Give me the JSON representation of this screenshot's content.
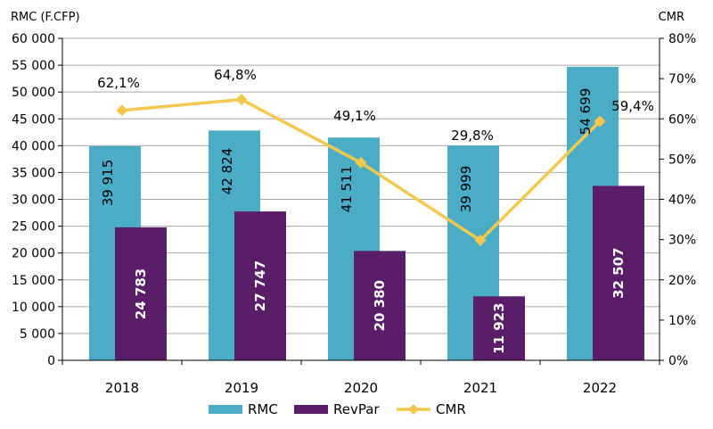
{
  "chart_data": {
    "type": "bar+line",
    "categories": [
      "2018",
      "2019",
      "2020",
      "2021",
      "2022"
    ],
    "y_left": {
      "label": "RMC (F.CFP)",
      "min": 0,
      "max": 60000,
      "step": 5000,
      "ticks": [
        "0",
        "5 000",
        "10 000",
        "15 000",
        "20 000",
        "25 000",
        "30 000",
        "35 000",
        "40 000",
        "45 000",
        "50 000",
        "55 000",
        "60 000"
      ]
    },
    "y_right": {
      "label": "CMR",
      "min": 0,
      "max": 80,
      "step": 10,
      "ticks": [
        "0%",
        "10%",
        "20%",
        "30%",
        "40%",
        "50%",
        "60%",
        "70%",
        "80%"
      ]
    },
    "series": [
      {
        "name": "RMC",
        "type": "bar",
        "axis": "left",
        "color": "#4BACC6",
        "values": [
          39915,
          42824,
          41511,
          39999,
          54699
        ],
        "labels": [
          "39 915",
          "42 824",
          "41 511",
          "39 999",
          "54 699"
        ]
      },
      {
        "name": "RevPar",
        "type": "bar",
        "axis": "left",
        "color": "#5A1E69",
        "values": [
          24783,
          27747,
          20380,
          11923,
          32507
        ],
        "labels": [
          "24 783",
          "27 747",
          "20 380",
          "11 923",
          "32 507"
        ]
      },
      {
        "name": "CMR",
        "type": "line",
        "axis": "right",
        "color": "#F2C94C",
        "values": [
          62.1,
          64.8,
          49.1,
          29.8,
          59.4
        ],
        "labels": [
          "62,1%",
          "64,8%",
          "49,1%",
          "29,8%",
          "59,4%"
        ]
      }
    ],
    "legend": {
      "position": "bottom"
    },
    "grid": true
  }
}
